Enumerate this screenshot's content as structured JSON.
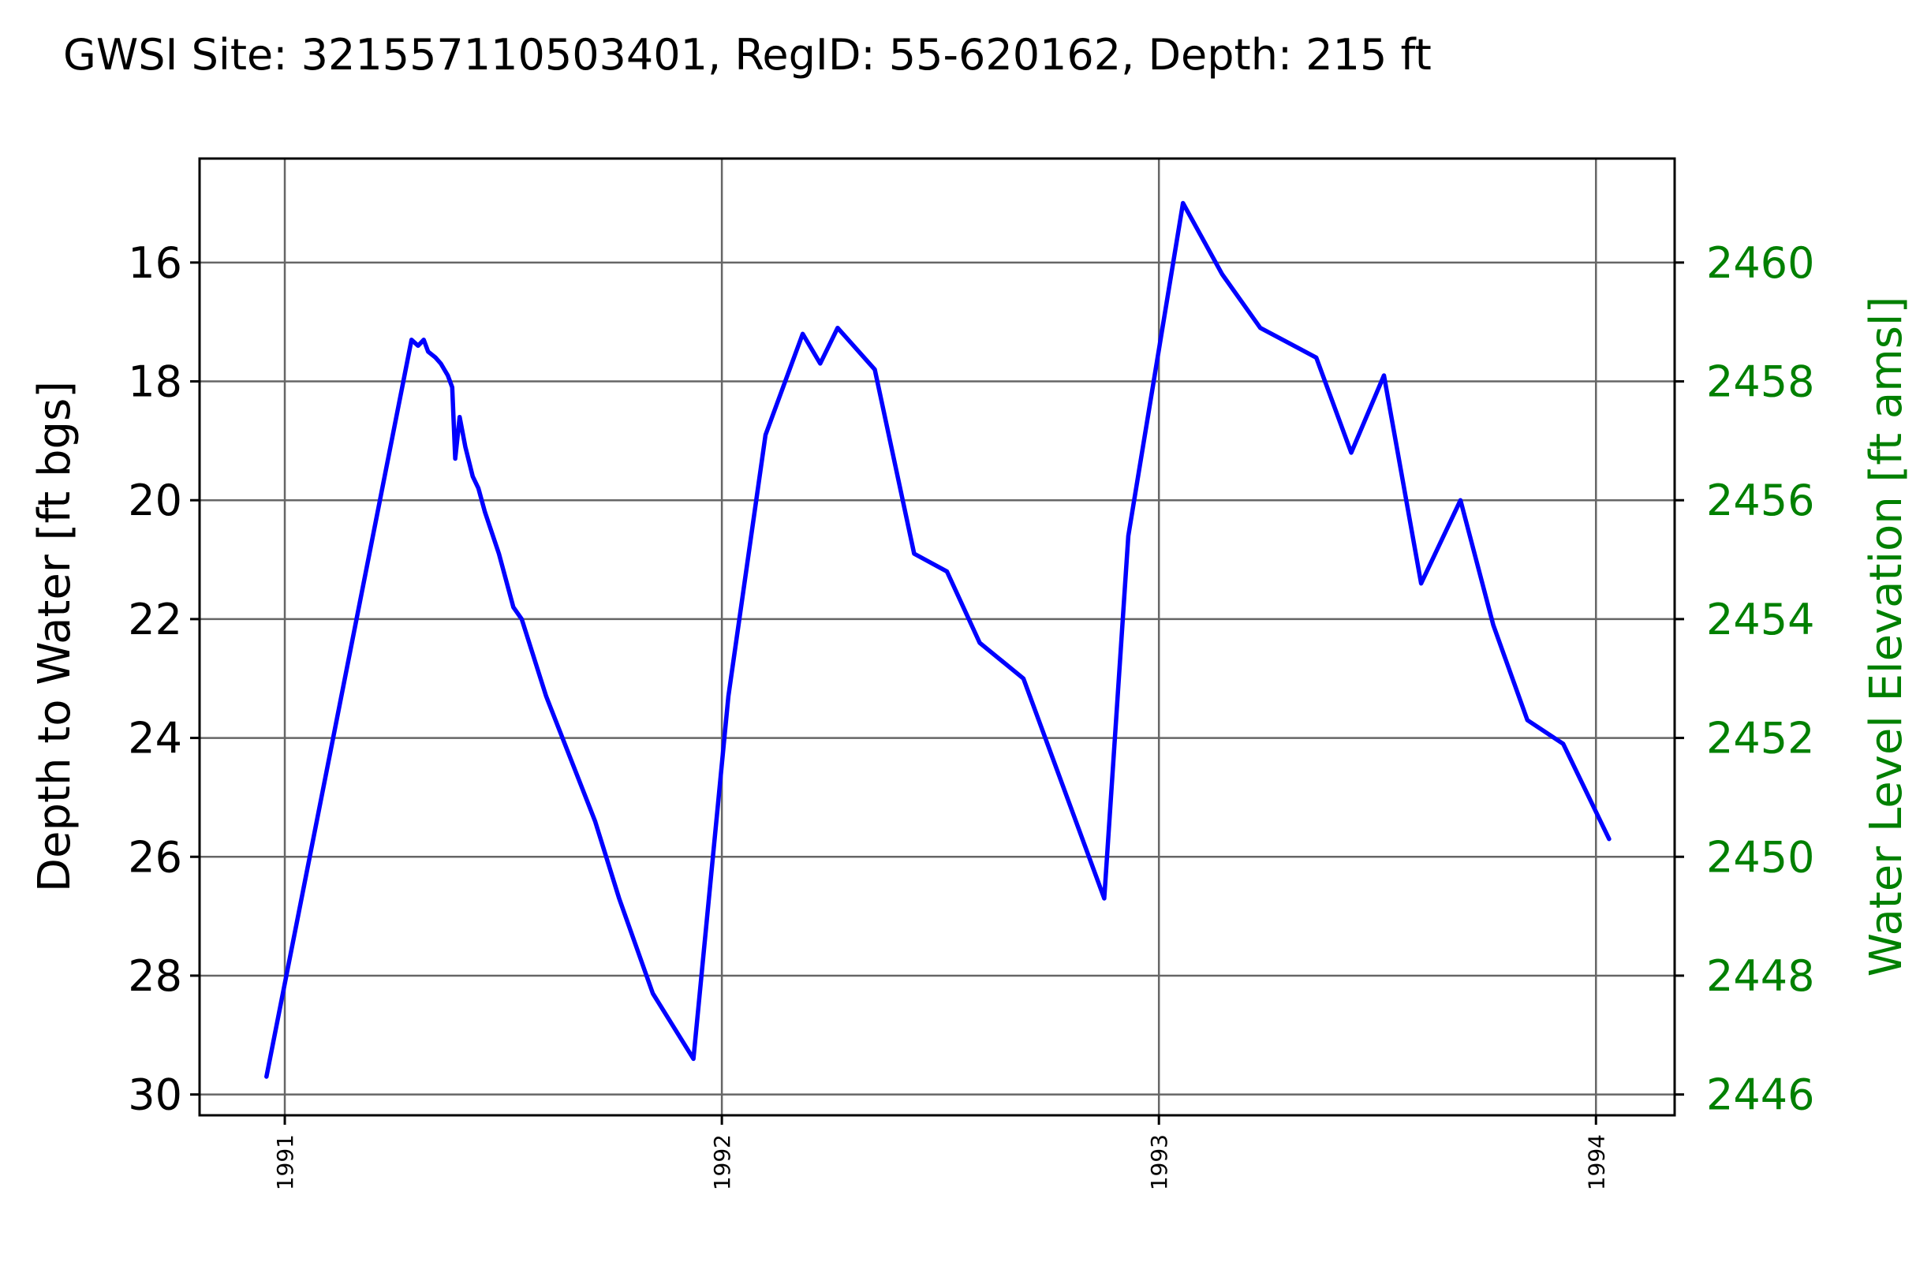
{
  "chart_data": {
    "type": "line",
    "title": "GWSI Site: 321557110503401, RegID: 55-620162, Depth: 215 ft",
    "xlabel": "",
    "ylabel": "Depth to Water [ft bgs]",
    "y2label": "Water Level Elevation [ft amsl]",
    "xlim": [
      1990.805,
      1994.18
    ],
    "ylim": [
      30.35,
      14.25
    ],
    "y_inverted": true,
    "y2lim": [
      2445.65,
      2461.75
    ],
    "x_ticks": [
      1991,
      1992,
      1993,
      1994
    ],
    "x_tick_labels": [
      "1991",
      "1992",
      "1993",
      "1994"
    ],
    "y_ticks": [
      16,
      18,
      20,
      22,
      24,
      26,
      28,
      30
    ],
    "y_tick_labels": [
      "16",
      "18",
      "20",
      "22",
      "24",
      "26",
      "28",
      "30"
    ],
    "y2_ticks": [
      2460,
      2458,
      2456,
      2454,
      2452,
      2450,
      2448,
      2446
    ],
    "y2_tick_labels": [
      "2460",
      "2458",
      "2456",
      "2454",
      "2452",
      "2450",
      "2448",
      "2446"
    ],
    "grid": true,
    "colors": {
      "line": "#0000ff",
      "right_axis": "#008000",
      "grid": "#666666",
      "axes": "#000000"
    },
    "series": [
      {
        "x": [
          1990.958,
          1991.29,
          1991.305,
          1991.318,
          1991.328,
          1991.345,
          1991.357,
          1991.373,
          1991.383,
          1991.39,
          1991.4,
          1991.413,
          1991.43,
          1991.443,
          1991.458,
          1991.49,
          1991.523,
          1991.542,
          1991.598,
          1991.71,
          1991.765,
          1991.842,
          1991.935,
          1992.015,
          1992.1,
          1992.185,
          1992.225,
          1992.265,
          1992.35,
          1992.44,
          1992.515,
          1992.59,
          1992.69,
          1992.875,
          1992.93,
          1993.055,
          1993.145,
          1993.232,
          1993.36,
          1993.44,
          1993.515,
          1993.6,
          1993.69,
          1993.765,
          1993.843,
          1993.925,
          1994.03
        ],
        "y": [
          29.7,
          17.3,
          17.4,
          17.3,
          17.5,
          17.6,
          17.7,
          17.9,
          18.1,
          19.3,
          18.6,
          19.1,
          19.6,
          19.8,
          20.2,
          20.9,
          21.8,
          22.0,
          23.3,
          25.4,
          26.7,
          28.3,
          29.4,
          23.3,
          18.9,
          17.2,
          17.7,
          17.1,
          17.8,
          20.9,
          21.2,
          22.4,
          23.0,
          26.7,
          20.6,
          15.0,
          16.2,
          17.1,
          17.6,
          19.2,
          17.9,
          21.4,
          20.0,
          22.1,
          23.7,
          24.1,
          25.7
        ]
      }
    ]
  }
}
